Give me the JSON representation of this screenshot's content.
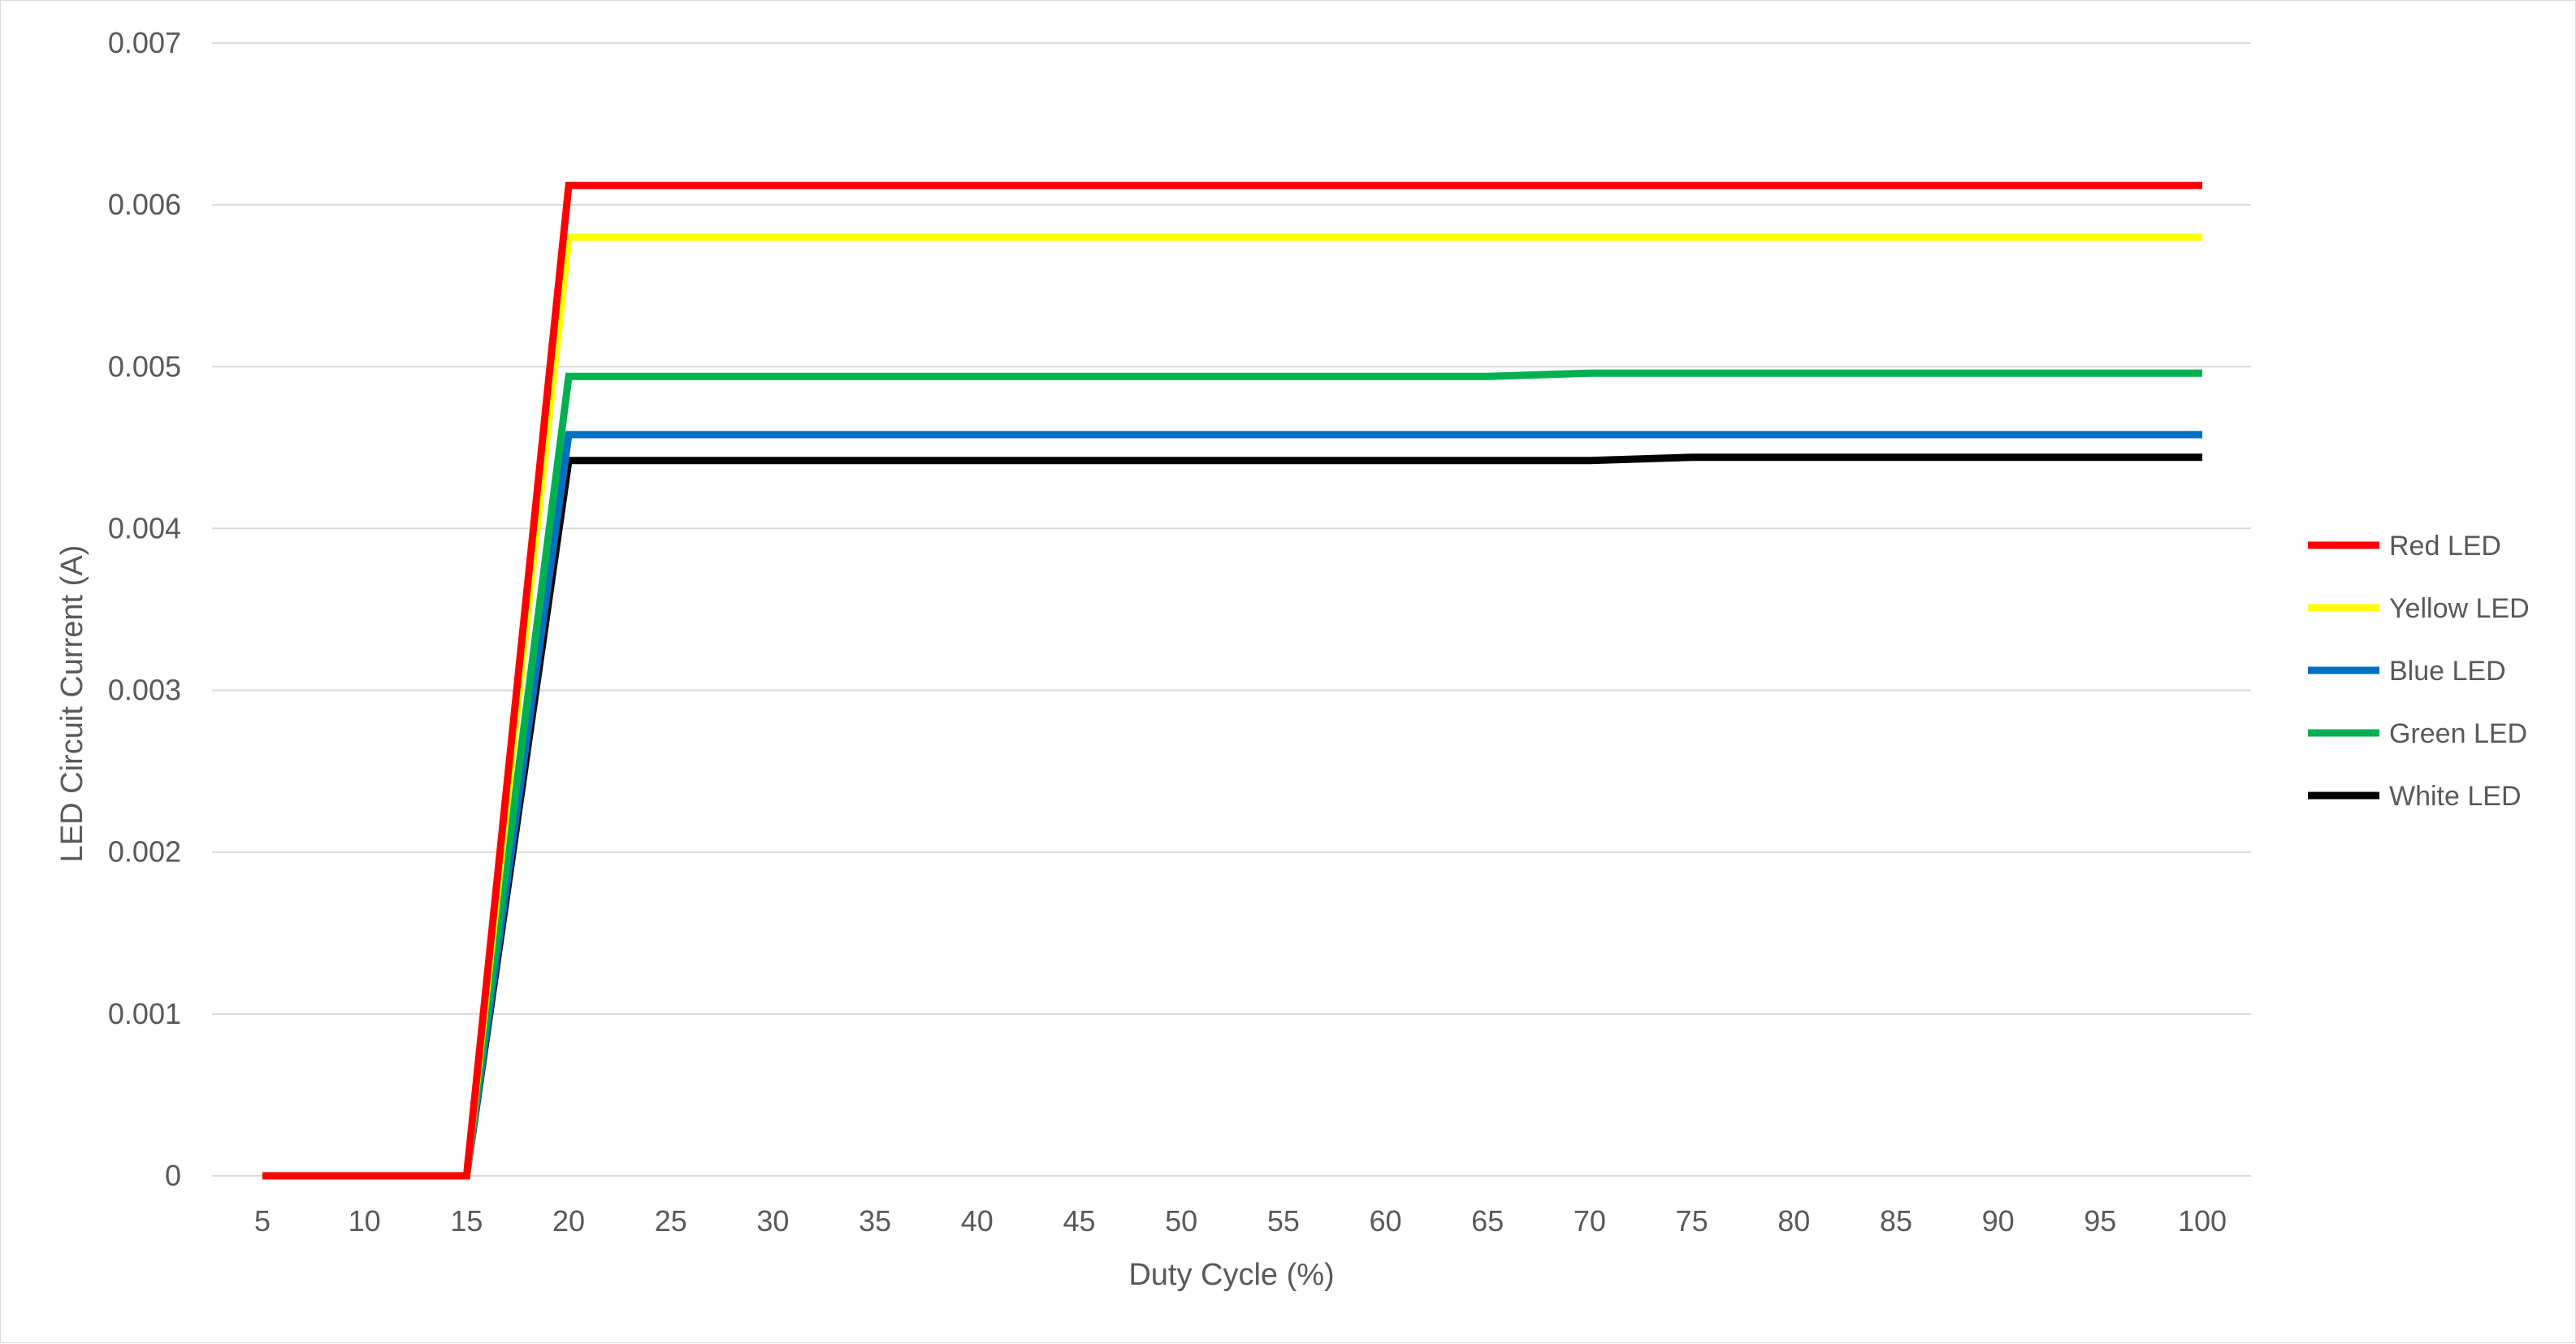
{
  "chart_data": {
    "type": "line",
    "title": "",
    "xlabel": "Duty Cycle (%)",
    "ylabel": "LED Circuit Current (A)",
    "x": [
      5,
      10,
      15,
      20,
      25,
      30,
      35,
      40,
      45,
      50,
      55,
      60,
      65,
      70,
      75,
      80,
      85,
      90,
      95,
      100
    ],
    "x_tick_labels": [
      "5",
      "10",
      "15",
      "20",
      "25",
      "30",
      "35",
      "40",
      "45",
      "50",
      "55",
      "60",
      "65",
      "70",
      "75",
      "80",
      "85",
      "90",
      "95",
      "100"
    ],
    "ylim": [
      0,
      0.007
    ],
    "y_ticks": [
      0,
      0.001,
      0.002,
      0.003,
      0.004,
      0.005,
      0.006,
      0.007
    ],
    "y_tick_labels": [
      "0",
      "0.001",
      "0.002",
      "0.003",
      "0.004",
      "0.005",
      "0.006",
      "0.007"
    ],
    "grid": "horizontal",
    "legend_position": "right",
    "series": [
      {
        "name": "Red LED",
        "color": "#ff0000",
        "values": [
          0,
          0,
          0,
          0.00612,
          0.00612,
          0.00612,
          0.00612,
          0.00612,
          0.00612,
          0.00612,
          0.00612,
          0.00612,
          0.00612,
          0.00612,
          0.00612,
          0.00612,
          0.00612,
          0.00612,
          0.00612,
          0.00612
        ]
      },
      {
        "name": "Yellow LED",
        "color": "#ffff00",
        "values": [
          0,
          0,
          0,
          0.0058,
          0.0058,
          0.0058,
          0.0058,
          0.0058,
          0.0058,
          0.0058,
          0.0058,
          0.0058,
          0.0058,
          0.0058,
          0.0058,
          0.0058,
          0.0058,
          0.0058,
          0.0058,
          0.0058
        ]
      },
      {
        "name": "Blue LED",
        "color": "#0070c0",
        "values": [
          0,
          0,
          0,
          0.00458,
          0.00458,
          0.00458,
          0.00458,
          0.00458,
          0.00458,
          0.00458,
          0.00458,
          0.00458,
          0.00458,
          0.00458,
          0.00458,
          0.00458,
          0.00458,
          0.00458,
          0.00458,
          0.00458
        ]
      },
      {
        "name": "Green LED",
        "color": "#00b050",
        "values": [
          0,
          0,
          0,
          0.00494,
          0.00494,
          0.00494,
          0.00494,
          0.00494,
          0.00494,
          0.00494,
          0.00494,
          0.00494,
          0.00494,
          0.00496,
          0.00496,
          0.00496,
          0.00496,
          0.00496,
          0.00496,
          0.00496
        ]
      },
      {
        "name": "White LED",
        "color": "#000000",
        "values": [
          0,
          0,
          0,
          0.00442,
          0.00442,
          0.00442,
          0.00442,
          0.00442,
          0.00442,
          0.00442,
          0.00442,
          0.00442,
          0.00442,
          0.00442,
          0.00444,
          0.00444,
          0.00444,
          0.00444,
          0.00444,
          0.00444
        ]
      }
    ]
  },
  "colors": {
    "gridline": "#d9d9d9",
    "axis_text": "#595959",
    "frame_border": "#d9d9d9"
  }
}
